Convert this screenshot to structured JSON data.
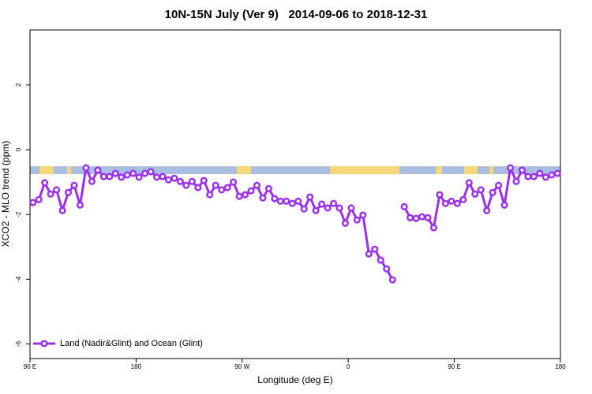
{
  "chart_data": {
    "type": "line",
    "title": "10N-15N July (Ver 9)   2014-09-06 to 2018-12-31",
    "xlabel": "Longitude (deg E)",
    "ylabel": "XCO2 - MLO trend (ppm)",
    "xlim": [
      90,
      540
    ],
    "ylim": [
      -6.45,
      3.7
    ],
    "xticks": [
      {
        "value": 90,
        "label": "90 E"
      },
      180,
      {
        "value": 270,
        "label": "90 W"
      },
      {
        "value": 360,
        "label": "0"
      },
      {
        "value": 450,
        "label": "90 E"
      },
      {
        "value": 540,
        "label": "180"
      }
    ],
    "yticks": [
      -6,
      -4,
      -2,
      0,
      2
    ],
    "legend": "bottom-left",
    "x": [
      92.5,
      97.5,
      102.5,
      107.5,
      112.5,
      117.5,
      122.5,
      127.5,
      132.5,
      137.5,
      142.5,
      147.5,
      152.5,
      157.5,
      162.5,
      167.5,
      172.5,
      177.5,
      182.5,
      187.5,
      192.5,
      197.5,
      202.5,
      207.5,
      212.5,
      217.5,
      222.5,
      227.5,
      232.5,
      237.5,
      242.5,
      247.5,
      252.5,
      257.5,
      262.5,
      267.5,
      272.5,
      277.5,
      282.5,
      287.5,
      292.5,
      297.5,
      302.5,
      307.5,
      312.5,
      317.5,
      322.5,
      327.5,
      332.5,
      337.5,
      342.5,
      347.5,
      352.5,
      357.5,
      362.5,
      367.5,
      372.5,
      377.5,
      382.5,
      387.5,
      392.5,
      397.5,
      402.5,
      407.5,
      412.5,
      417.5,
      422.5,
      427.5,
      432.5,
      437.5,
      442.5,
      447.5,
      452.5,
      457.5,
      462.5,
      467.5,
      472.5,
      477.5,
      482.5,
      487.5,
      492.5,
      497.5,
      502.5,
      507.5,
      512.5,
      517.5,
      522.5,
      527.5,
      532.5,
      537.5
    ],
    "series": [
      {
        "name": "Land (Nadir&Glint) and Ocean (Glint)",
        "color": "#9b30f0",
        "values": [
          -1.63,
          -1.54,
          -1.02,
          -1.37,
          -1.24,
          -1.88,
          -1.32,
          -1.1,
          -1.71,
          -0.56,
          -0.98,
          -0.63,
          -0.83,
          -0.83,
          -0.73,
          -0.85,
          -0.78,
          -0.73,
          -0.85,
          -0.73,
          -0.68,
          -0.85,
          -0.83,
          -0.93,
          -0.88,
          -0.98,
          -1.1,
          -0.98,
          -1.17,
          -0.95,
          -1.39,
          -1.1,
          -1.24,
          -1.17,
          -1.0,
          -1.44,
          -1.39,
          -1.27,
          -1.1,
          -1.49,
          -1.2,
          -1.51,
          -1.59,
          -1.59,
          -1.66,
          -1.59,
          -1.83,
          -1.46,
          -1.88,
          -1.68,
          -1.8,
          -1.66,
          -1.8,
          -2.27,
          -1.8,
          -2.17,
          -2.02,
          -3.22,
          -3.07,
          -3.41,
          -3.68,
          -4.02,
          null,
          -1.76,
          -2.1,
          -2.12,
          -2.07,
          -2.1,
          -2.41,
          -1.39,
          -1.66,
          -1.59,
          -1.66,
          -1.54,
          -1.02,
          -1.37,
          -1.24,
          -1.88,
          -1.32,
          -1.1,
          -1.71,
          -0.56,
          -0.98,
          -0.63,
          -0.83,
          -0.83,
          -0.73,
          -0.85,
          -0.78,
          -0.73
        ]
      }
    ]
  }
}
